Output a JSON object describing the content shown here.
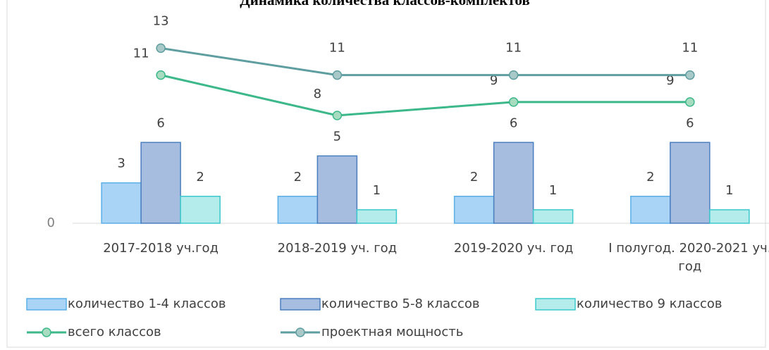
{
  "chart_data": {
    "type": "bar_line",
    "title": "Динамика количества классов-комплектов",
    "categories": [
      "2017-2018 уч.год",
      "2018-2019 уч. год",
      "2019-2020 уч. год",
      "I полугод. 2020-2021 уч. год"
    ],
    "series": [
      {
        "name": "количество 1-4 классов",
        "type": "bar",
        "color": "#a9d4f5",
        "stroke": "#5aaee8",
        "values": [
          3,
          2,
          2,
          2
        ]
      },
      {
        "name": "количество 5-8 классов",
        "type": "bar",
        "color": "#a7bde0",
        "stroke": "#4a7ebf",
        "values": [
          6,
          5,
          6,
          6
        ]
      },
      {
        "name": "количество 9 классов",
        "type": "bar",
        "color": "#b4ecec",
        "stroke": "#3cc8cc",
        "values": [
          2,
          1,
          1,
          1
        ]
      },
      {
        "name": "всего классов",
        "type": "line",
        "color": "#3cb88a",
        "marker": "#a8dcc0",
        "values": [
          11,
          8,
          9,
          9
        ]
      },
      {
        "name": "проектная мощность",
        "type": "line",
        "color": "#5f9ea0",
        "marker": "#a9c9c9",
        "values": [
          13,
          11,
          11,
          11
        ]
      }
    ],
    "ylim": [
      0,
      16
    ],
    "yticks": [
      0
    ]
  }
}
